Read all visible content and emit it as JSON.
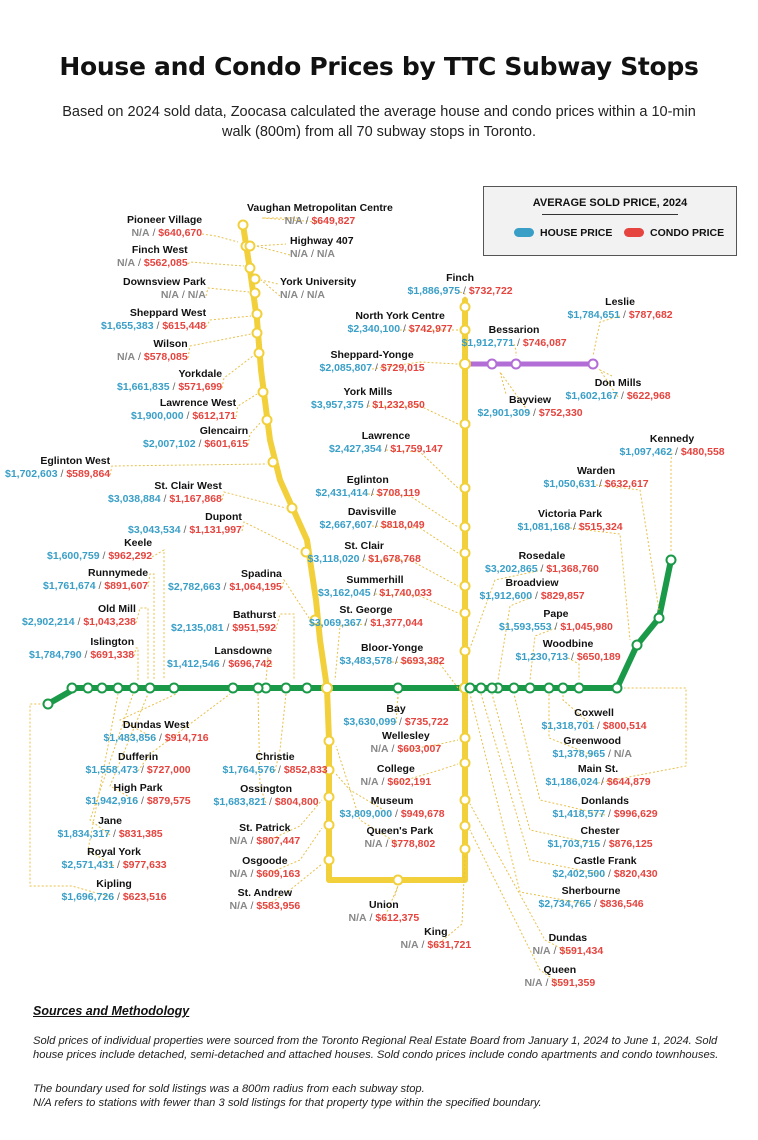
{
  "title": "House and Condo Prices by TTC Subway Stops",
  "subtitle": "Based on 2024 sold data, Zoocasa calculated the average house and condo prices within a 10-min walk (800m) from all 70 subway stops in Toronto.",
  "legend": {
    "title": "AVERAGE SOLD PRICE, 2024",
    "house_label": "HOUSE PRICE",
    "condo_label": "CONDO PRICE",
    "house_color": "#3a9fc7",
    "condo_color": "#e5443f"
  },
  "line_colors": {
    "line1": "#f2d03b",
    "line2": "#1a9a48",
    "line4": "#b26dd6"
  },
  "separator": " / ",
  "stations": [
    {
      "name": "Vaughan Metropolitan Centre",
      "house": "N/A",
      "condo": "$649,827"
    },
    {
      "name": "Pioneer Village",
      "house": "N/A",
      "condo": "$640,670"
    },
    {
      "name": "Highway 407",
      "house": "N/A",
      "condo": "N/A"
    },
    {
      "name": "Finch West",
      "house": "N/A",
      "condo": "$562,085"
    },
    {
      "name": "Downsview Park",
      "house": "N/A",
      "condo": "N/A"
    },
    {
      "name": "York University",
      "house": "N/A",
      "condo": "N/A"
    },
    {
      "name": "Sheppard West",
      "house": "$1,655,383",
      "condo": "$615,448"
    },
    {
      "name": "Wilson",
      "house": "N/A",
      "condo": "$578,085"
    },
    {
      "name": "Yorkdale",
      "house": "$1,661,835",
      "condo": "$571,699"
    },
    {
      "name": "Lawrence West",
      "house": "$1,900,000",
      "condo": "$612,171"
    },
    {
      "name": "Glencairn",
      "house": "$2,007,102",
      "condo": "$601,615"
    },
    {
      "name": "Eglinton West",
      "house": "$1,702,603",
      "condo": "$589,864"
    },
    {
      "name": "St. Clair West",
      "house": "$3,038,884",
      "condo": "$1,167,868"
    },
    {
      "name": "Dupont",
      "house": "$3,043,534",
      "condo": "$1,131,997"
    },
    {
      "name": "Keele",
      "house": "$1,600,759",
      "condo": "$962,292"
    },
    {
      "name": "Spadina",
      "house": "$2,782,663",
      "condo": "$1,064,195"
    },
    {
      "name": "Runnymede",
      "house": "$1,761,674",
      "condo": "$891,607"
    },
    {
      "name": "Bathurst",
      "house": "$2,135,081",
      "condo": "$951,592"
    },
    {
      "name": "Old Mill",
      "house": "$2,902,214",
      "condo": "$1,043,238"
    },
    {
      "name": "Islington",
      "house": "$1,784,790",
      "condo": "$691,338"
    },
    {
      "name": "Lansdowne",
      "house": "$1,412,546",
      "condo": "$696,742"
    },
    {
      "name": "Finch",
      "house": "$1,886,975",
      "condo": "$732,722"
    },
    {
      "name": "North York Centre",
      "house": "$2,340,100",
      "condo": "$742,977"
    },
    {
      "name": "Sheppard-Yonge",
      "house": "$2,085,807",
      "condo": "$729,015"
    },
    {
      "name": "York Mills",
      "house": "$3,957,375",
      "condo": "$1,232,850"
    },
    {
      "name": "Lawrence",
      "house": "$2,427,354",
      "condo": "$1,759,147"
    },
    {
      "name": "Eglinton",
      "house": "$2,431,414",
      "condo": "$708,119"
    },
    {
      "name": "Davisville",
      "house": "$2,667,607",
      "condo": "$818,049"
    },
    {
      "name": "St. Clair",
      "house": "$3,118,020",
      "condo": "$1,678,768"
    },
    {
      "name": "Summerhill",
      "house": "$3,162,045",
      "condo": "$1,740,033"
    },
    {
      "name": "St. George",
      "house": "$3,069,367",
      "condo": "$1,377,044"
    },
    {
      "name": "Bloor-Yonge",
      "house": "$3,483,578",
      "condo": "$693,382"
    },
    {
      "name": "Leslie",
      "house": "$1,784,651",
      "condo": "$787,682"
    },
    {
      "name": "Bessarion",
      "house": "$1,912,771",
      "condo": "$746,087"
    },
    {
      "name": "Don Mills",
      "house": "$1,602,167",
      "condo": "$622,968"
    },
    {
      "name": "Bayview",
      "house": "$2,901,309",
      "condo": "$752,330"
    },
    {
      "name": "Kennedy",
      "house": "$1,097,462",
      "condo": "$480,558"
    },
    {
      "name": "Warden",
      "house": "$1,050,631",
      "condo": "$632,617"
    },
    {
      "name": "Victoria Park",
      "house": "$1,081,168",
      "condo": "$515,324"
    },
    {
      "name": "Rosedale",
      "house": "$3,202,865",
      "condo": "$1,368,760"
    },
    {
      "name": "Broadview",
      "house": "$1,912,600",
      "condo": "$829,857"
    },
    {
      "name": "Pape",
      "house": "$1,593,553",
      "condo": "$1,045,980"
    },
    {
      "name": "Woodbine",
      "house": "$1,230,713",
      "condo": "$650,189"
    },
    {
      "name": "Bay",
      "house": "$3,630,099",
      "condo": "$735,722"
    },
    {
      "name": "Wellesley",
      "house": "N/A",
      "condo": "$603,007"
    },
    {
      "name": "College",
      "house": "N/A",
      "condo": "$602,191"
    },
    {
      "name": "Museum",
      "house": "$3,809,000",
      "condo": "$949,678"
    },
    {
      "name": "Queen's Park",
      "house": "N/A",
      "condo": "$778,802"
    },
    {
      "name": "Union",
      "house": "N/A",
      "condo": "$612,375"
    },
    {
      "name": "King",
      "house": "N/A",
      "condo": "$631,721"
    },
    {
      "name": "Dundas",
      "house": "N/A",
      "condo": "$591,434"
    },
    {
      "name": "Queen",
      "house": "N/A",
      "condo": "$591,359"
    },
    {
      "name": "Dundas West",
      "house": "$1,483,856",
      "condo": "$914,716"
    },
    {
      "name": "Dufferin",
      "house": "$1,558,473",
      "condo": "$727,000"
    },
    {
      "name": "Christie",
      "house": "$1,764,576",
      "condo": "$852,833"
    },
    {
      "name": "High Park",
      "house": "$1,942,916",
      "condo": "$879,575"
    },
    {
      "name": "Ossington",
      "house": "$1,683,821",
      "condo": "$804,800"
    },
    {
      "name": "Jane",
      "house": "$1,834,317",
      "condo": "$831,385"
    },
    {
      "name": "St. Patrick",
      "house": "N/A",
      "condo": "$807,447"
    },
    {
      "name": "Royal York",
      "house": "$2,571,431",
      "condo": "$977,633"
    },
    {
      "name": "Osgoode",
      "house": "N/A",
      "condo": "$609,163"
    },
    {
      "name": "Kipling",
      "house": "$1,696,726",
      "condo": "$623,516"
    },
    {
      "name": "St. Andrew",
      "house": "N/A",
      "condo": "$583,956"
    },
    {
      "name": "Coxwell",
      "house": "$1,318,701",
      "condo": "$800,514"
    },
    {
      "name": "Greenwood",
      "house": "$1,378,965",
      "condo": "N/A"
    },
    {
      "name": "Main St.",
      "house": "$1,186,024",
      "condo": "$644,879"
    },
    {
      "name": "Donlands",
      "house": "$1,418,577",
      "condo": "$996,629"
    },
    {
      "name": "Chester",
      "house": "$1,703,715",
      "condo": "$876,125"
    },
    {
      "name": "Castle Frank",
      "house": "$2,402,500",
      "condo": "$820,430"
    },
    {
      "name": "Sherbourne",
      "house": "$2,734,765",
      "condo": "$836,546"
    }
  ],
  "sources": {
    "heading": "Sources and Methodology",
    "para1": "Sold prices of individual properties were sourced from the Toronto Regional Real Estate Board from January 1, 2024 to June 1, 2024. Sold house prices include detached, semi-detached and attached houses. Sold condo prices include condo apartments and condo townhouses.",
    "para2": "The boundary used for sold listings was a 800m radius from each subway stop.",
    "para3": "N/A refers to stations with fewer than 3 sold listings for that property type within the specified boundary."
  }
}
